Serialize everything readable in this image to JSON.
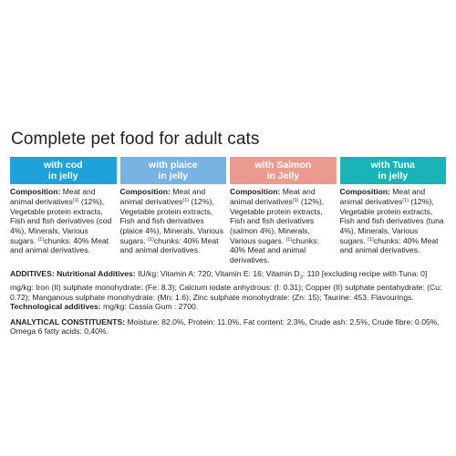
{
  "title": "Complete pet food for adult cats",
  "colors": {
    "cod": "#1fa2d8",
    "plaice": "#78b3e3",
    "salmon": "#eb9a8f",
    "tuna": "#1ab3b6",
    "text": "#231f20"
  },
  "variants": [
    {
      "badge_line1": "with cod",
      "badge_line2": "in jelly",
      "comp_label": "Composition:",
      "comp_a": "Meat and animal derivatives",
      "comp_sup1": "(1)",
      "comp_b": "(12%), Vegetable protein extracts, Fish and fish derivatives (cod 4%), Minerals, Various sugars.",
      "comp_sup2": "(1)",
      "comp_c": "chunks: 40% Meat and animal derivatives."
    },
    {
      "badge_line1": "with plaice",
      "badge_line2": "in jelly",
      "comp_label": "Composition:",
      "comp_a": "Meat and animal derivatives",
      "comp_sup1": "(1)",
      "comp_b": "(12%), Vegetable protein extracts, Fish and fish derivatives (plaice 4%), Minerals, Various sugars.",
      "comp_sup2": "(1)",
      "comp_c": "chunks: 40% Meat and animal derivatives."
    },
    {
      "badge_line1": "with Salmon",
      "badge_line2": "in Jelly",
      "comp_label": "Composition:",
      "comp_a": "Meat and animal derivatives",
      "comp_sup1": "(1)",
      "comp_b": "(12%), Vegetable protein extracts, Fish and fish derivatives (salmon 4%), Minerals, Various sugars.",
      "comp_sup2": "(1)",
      "comp_c": "chunks: 40% Meat and animal derivatives."
    },
    {
      "badge_line1": "with Tuna",
      "badge_line2": "in jelly",
      "comp_label": "Composition:",
      "comp_a": "Meat and animal derivatives",
      "comp_sup1": "(1)",
      "comp_b": "(12%), Vegetable protein extracts, Fish and fish derivatives (tuna 4%), Minerals, Various sugars.",
      "comp_sup2": "(1)",
      "comp_c": "chunks: 40% Meat and animal derivatives."
    }
  ],
  "additives": {
    "label": "ADDITIVES:",
    "nutritional_label": "Nutritional Additives:",
    "nutritional_text_a": "IU/kg: Vitamin A: 720; Vitamin E: 16; Vitamin D",
    "d3_sub": "3",
    "nutritional_text_b": ": 110 [excluding recipe with Tuna: 0] mg/kg: Iron (II) sulphate monohydrate: (Fe: 8.3); Calcium iodate anhydrous: (I: 0.31); Copper (II) sulphate pentahydrate: (Cu: 0.72); Manganous sulphate monohydrate: (Mn: 1.6); Zinc sulphate monohydrate: (Zn: 15); Taurine: 453. Flavourings.",
    "technological_label": "Technological additives:",
    "technological_text": "mg/kg: Cassia Gum : 2700."
  },
  "analytical": {
    "label": "ANALYTICAL CONSTITUENTS:",
    "text": "Moisture: 82.0%, Protein: 11.0%, Fat content: 2.3%, Crude ash: 2.5%, Crude fibre: 0.05%, Omega 6 fatty acids: 0.40%."
  }
}
